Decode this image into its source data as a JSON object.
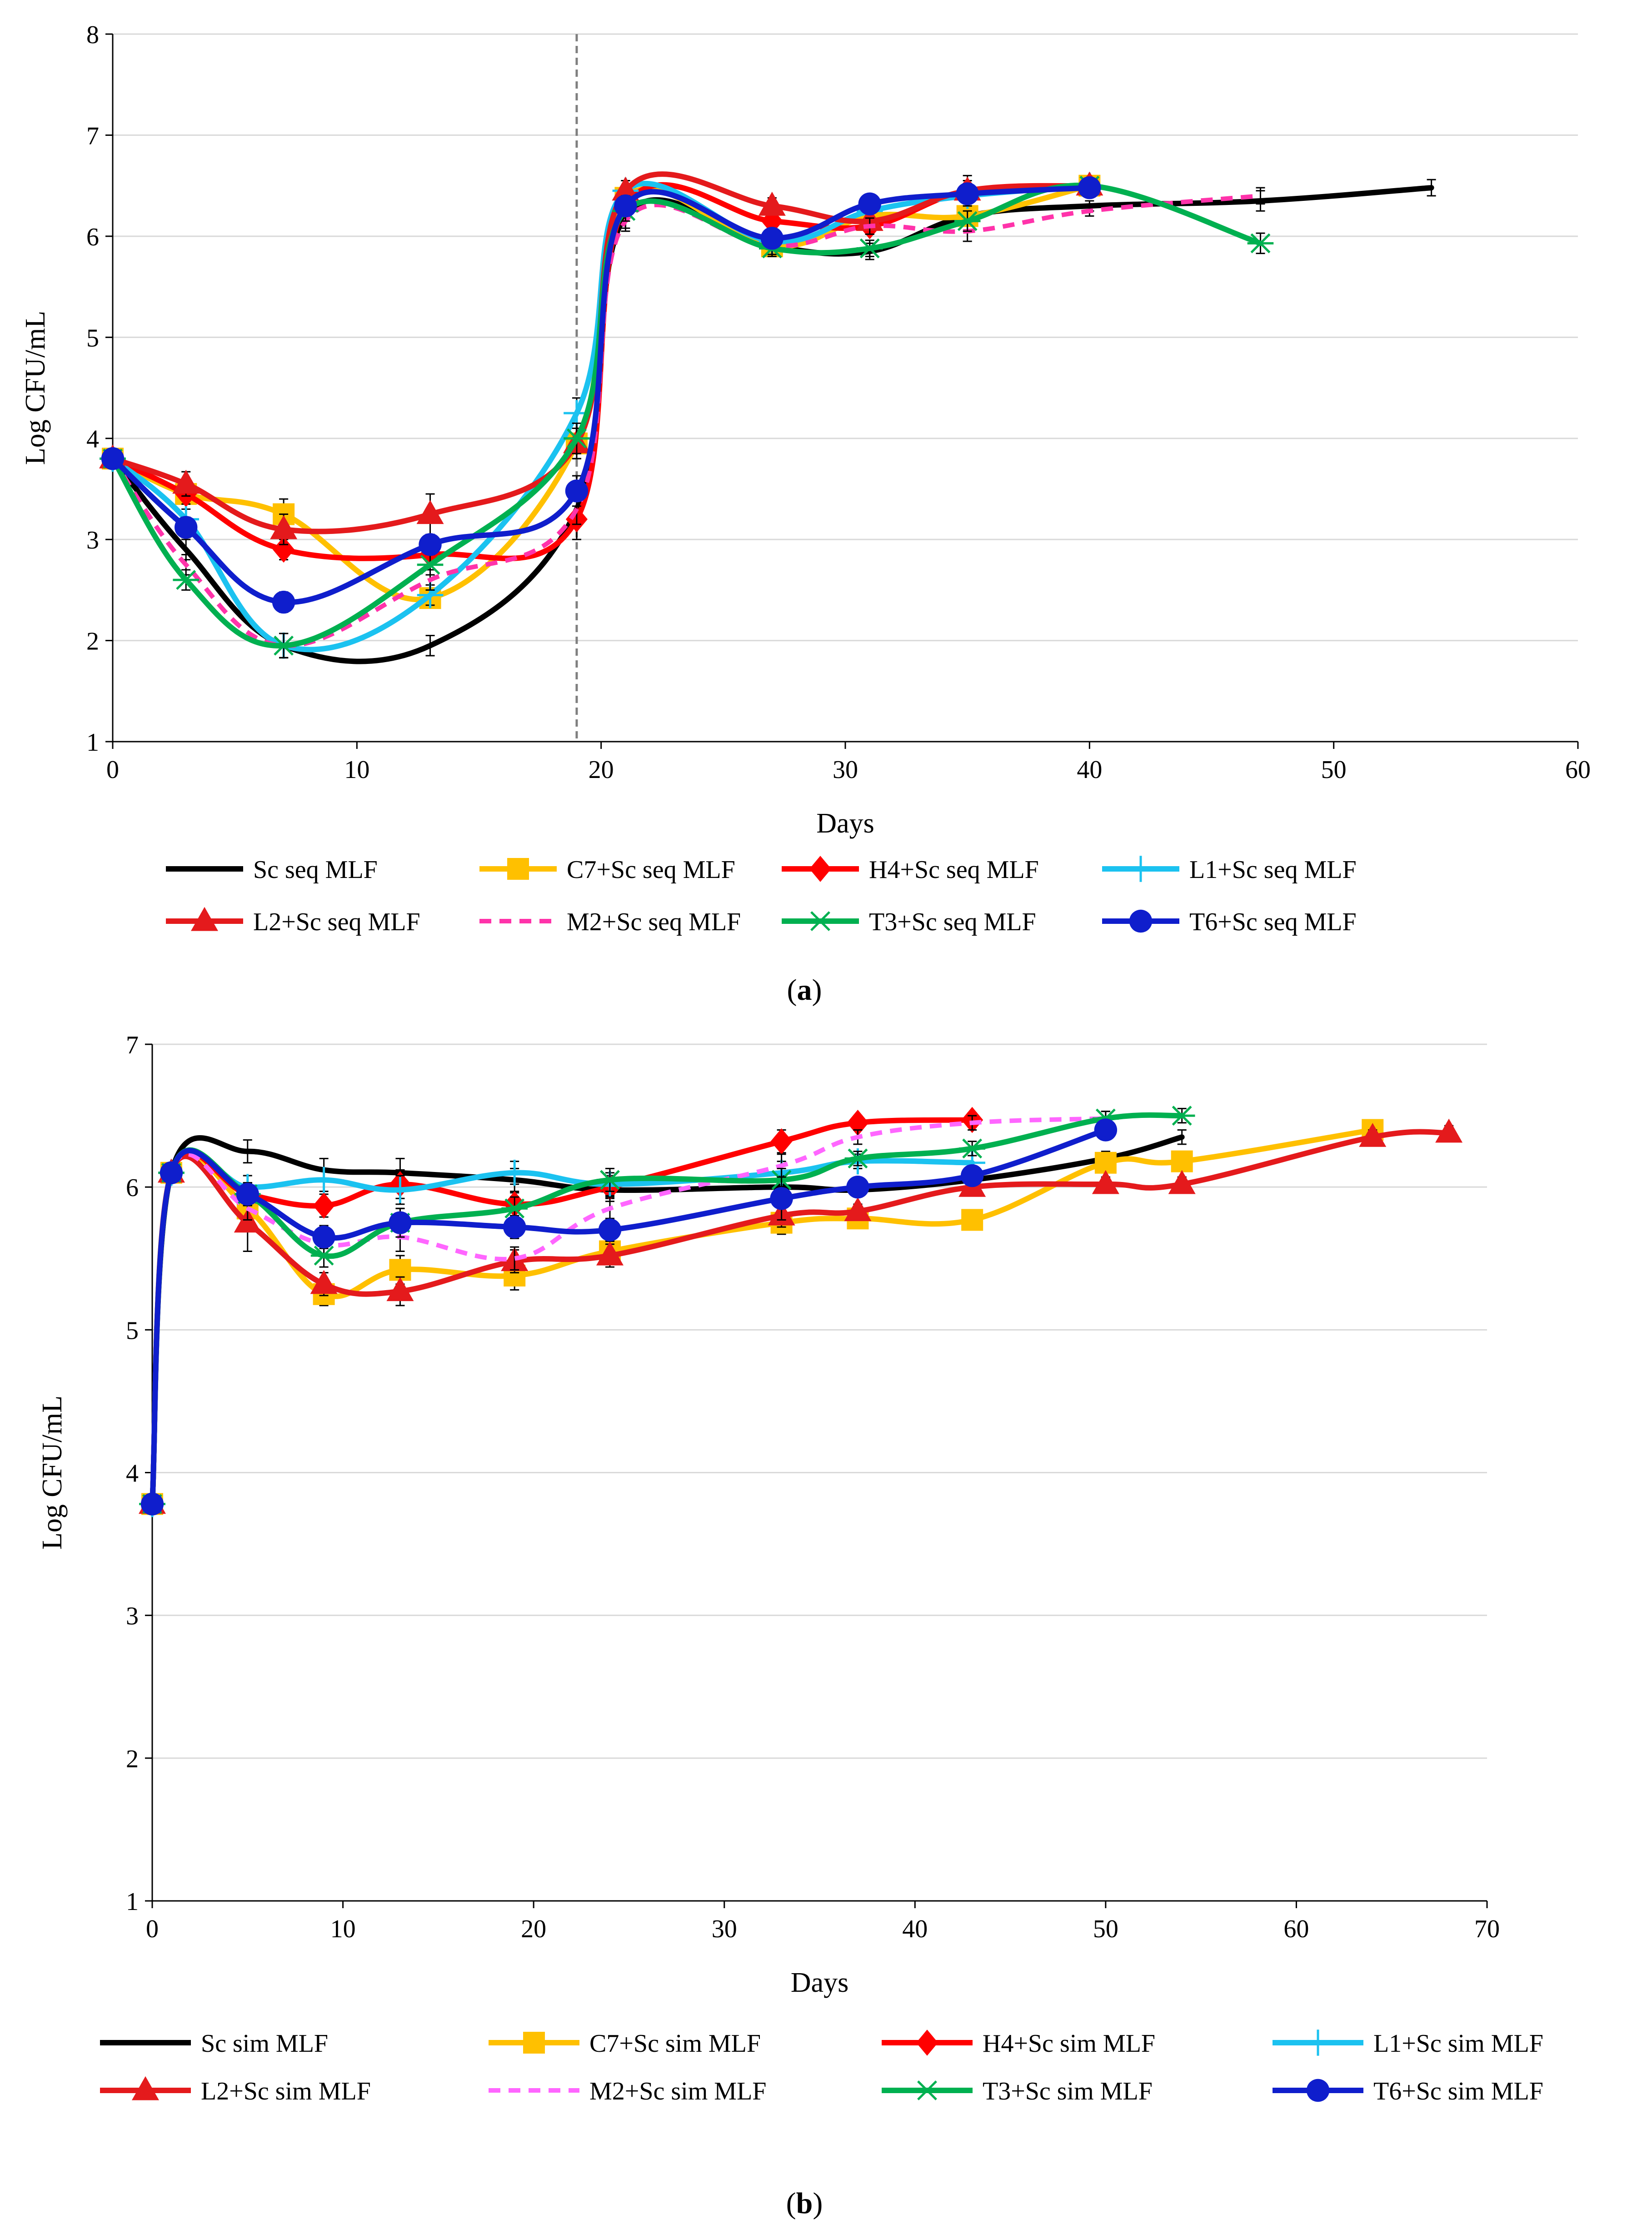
{
  "chart_data": [
    {
      "type": "line",
      "panel_label": "a",
      "xlabel": "Days",
      "ylabel": "Log CFU/mL",
      "xlim": [
        0,
        60
      ],
      "ylim": [
        1,
        8
      ],
      "xticks": [
        0,
        10,
        20,
        30,
        40,
        50,
        60
      ],
      "yticks": [
        1,
        2,
        3,
        4,
        5,
        6,
        7,
        8
      ],
      "grid": "horizontal",
      "vline_x": 19,
      "legend_position": "bottom",
      "series": [
        {
          "name": "Sc seq MLF",
          "color": "#000000",
          "marker": "none",
          "dash": false,
          "x": [
            0,
            3,
            7,
            13,
            19,
            21,
            27,
            31,
            35,
            40,
            47,
            54
          ],
          "y": [
            3.8,
            2.9,
            1.95,
            1.95,
            3.3,
            6.2,
            5.9,
            5.85,
            6.2,
            6.3,
            6.35,
            6.48
          ],
          "err": [
            0.05,
            0.1,
            0.12,
            0.1,
            0.15,
            0.12,
            0.1,
            0.08,
            0.1,
            0.05,
            0.1,
            0.08
          ]
        },
        {
          "name": "C7+Sc seq MLF",
          "color": "#FFC000",
          "marker": "square",
          "dash": false,
          "x": [
            0,
            3,
            7,
            13,
            19,
            21,
            27,
            31,
            35,
            40
          ],
          "y": [
            3.8,
            3.45,
            3.25,
            2.42,
            3.95,
            6.38,
            5.9,
            6.2,
            6.2,
            6.5
          ],
          "err": [
            0.05,
            0.1,
            0.15,
            0.1,
            0.15,
            0.1,
            0.08,
            0.08,
            0.1,
            0.05
          ]
        },
        {
          "name": "H4+Sc seq MLF",
          "color": "#FF0000",
          "marker": "diamond",
          "dash": false,
          "x": [
            0,
            3,
            7,
            13,
            19,
            21,
            27,
            31,
            35,
            40
          ],
          "y": [
            3.8,
            3.45,
            2.9,
            2.85,
            3.2,
            6.3,
            6.15,
            6.1,
            6.45,
            6.5
          ],
          "err": [
            0.05,
            0.1,
            0.1,
            0.1,
            0.2,
            0.1,
            0.08,
            0.08,
            0.1,
            0.05
          ]
        },
        {
          "name": "L1+Sc seq MLF",
          "color": "#1BC2F0",
          "marker": "plus",
          "dash": false,
          "x": [
            0,
            3,
            7,
            13,
            19,
            21,
            27,
            31,
            35,
            40
          ],
          "y": [
            3.8,
            3.2,
            1.95,
            2.45,
            4.25,
            6.45,
            5.95,
            6.25,
            6.4,
            6.5
          ],
          "err": [
            0.05,
            0.1,
            0.12,
            0.1,
            0.15,
            0.1,
            0.08,
            0.08,
            0.1,
            0.05
          ]
        },
        {
          "name": "L2+Sc seq MLF",
          "color": "#E41A1C",
          "marker": "triangle",
          "dash": false,
          "x": [
            0,
            3,
            7,
            13,
            19,
            21,
            27,
            31,
            35,
            40
          ],
          "y": [
            3.8,
            3.55,
            3.1,
            3.25,
            3.95,
            6.45,
            6.3,
            6.15,
            6.45,
            6.5
          ],
          "err": [
            0.05,
            0.12,
            0.15,
            0.2,
            0.15,
            0.1,
            0.08,
            0.08,
            0.15,
            0.05
          ]
        },
        {
          "name": "M2+Sc seq MLF",
          "color": "#FF33AA",
          "marker": "none",
          "dash": true,
          "x": [
            0,
            3,
            7,
            13,
            19,
            21,
            27,
            31,
            35,
            40,
            47
          ],
          "y": [
            3.8,
            2.75,
            1.95,
            2.6,
            3.3,
            6.15,
            5.9,
            6.1,
            6.05,
            6.25,
            6.4
          ],
          "err": [
            0.05,
            0.1,
            0.12,
            0.1,
            0.15,
            0.1,
            0.08,
            0.08,
            0.1,
            0.05,
            0.08
          ]
        },
        {
          "name": "T3+Sc seq MLF",
          "color": "#00B050",
          "marker": "star",
          "dash": false,
          "x": [
            0,
            3,
            7,
            13,
            19,
            21,
            27,
            31,
            35,
            40,
            47
          ],
          "y": [
            3.8,
            2.6,
            1.95,
            2.75,
            4.0,
            6.25,
            5.88,
            5.88,
            6.15,
            6.5,
            5.93
          ],
          "err": [
            0.05,
            0.1,
            0.12,
            0.1,
            0.15,
            0.1,
            0.08,
            0.08,
            0.1,
            0.05,
            0.1
          ]
        },
        {
          "name": "T6+Sc seq MLF",
          "color": "#0F1ECC",
          "marker": "circle",
          "dash": false,
          "x": [
            0,
            3,
            7,
            13,
            19,
            21,
            27,
            31,
            35,
            40
          ],
          "y": [
            3.8,
            3.12,
            2.38,
            2.95,
            3.48,
            6.3,
            5.98,
            6.32,
            6.42,
            6.48
          ],
          "err": [
            0.05,
            0.1,
            0.1,
            0.1,
            0.15,
            0.1,
            0.08,
            0.08,
            0.1,
            0.05
          ]
        }
      ]
    },
    {
      "type": "line",
      "panel_label": "b",
      "xlabel": "Days",
      "ylabel": "Log CFU/mL",
      "xlim": [
        0,
        70
      ],
      "ylim": [
        1,
        7
      ],
      "xticks": [
        0,
        10,
        20,
        30,
        40,
        50,
        60,
        70
      ],
      "yticks": [
        1,
        2,
        3,
        4,
        5,
        6,
        7
      ],
      "grid": "horizontal",
      "legend_position": "bottom",
      "series": [
        {
          "name": "Sc sim MLF",
          "color": "#000000",
          "marker": "none",
          "dash": false,
          "x": [
            0,
            1,
            5,
            9,
            13,
            19,
            24,
            33,
            37,
            43,
            50,
            54
          ],
          "y": [
            3.78,
            6.1,
            6.25,
            6.12,
            6.1,
            6.05,
            5.98,
            6.0,
            5.98,
            6.05,
            6.2,
            6.35
          ],
          "err": [
            0.03,
            0.05,
            0.08,
            0.08,
            0.1,
            0.08,
            0.08,
            0.08,
            0.05,
            0.05,
            0.05,
            0.05
          ]
        },
        {
          "name": "C7+Sc sim MLF",
          "color": "#FFC000",
          "marker": "square",
          "dash": false,
          "x": [
            0,
            1,
            5,
            9,
            13,
            19,
            24,
            33,
            37,
            43,
            50,
            54,
            64
          ],
          "y": [
            3.78,
            6.1,
            5.85,
            5.25,
            5.42,
            5.38,
            5.55,
            5.75,
            5.78,
            5.77,
            6.17,
            6.18,
            6.4
          ],
          "err": [
            0.03,
            0.05,
            0.08,
            0.08,
            0.1,
            0.1,
            0.08,
            0.08,
            0.05,
            0.05,
            0.05,
            0.05,
            0.05
          ]
        },
        {
          "name": "H4+Sc sim MLF",
          "color": "#FF0000",
          "marker": "diamond",
          "dash": false,
          "x": [
            0,
            1,
            5,
            9,
            13,
            19,
            24,
            33,
            37,
            43
          ],
          "y": [
            3.78,
            6.1,
            5.95,
            5.87,
            6.02,
            5.88,
            6.0,
            6.32,
            6.45,
            6.47
          ],
          "err": [
            0.03,
            0.05,
            0.08,
            0.08,
            0.1,
            0.08,
            0.08,
            0.08,
            0.05,
            0.05
          ]
        },
        {
          "name": "L1+Sc sim MLF",
          "color": "#1BC2F0",
          "marker": "plus",
          "dash": false,
          "x": [
            0,
            1,
            5,
            9,
            13,
            19,
            24,
            33,
            37,
            43
          ],
          "y": [
            3.78,
            6.1,
            6.0,
            6.05,
            5.98,
            6.1,
            6.02,
            6.1,
            6.18,
            6.17
          ],
          "err": [
            0.03,
            0.05,
            0.08,
            0.08,
            0.1,
            0.08,
            0.08,
            0.08,
            0.05,
            0.05
          ]
        },
        {
          "name": "L2+Sc sim MLF",
          "color": "#E41A1C",
          "marker": "triangle",
          "dash": false,
          "x": [
            0,
            1,
            5,
            9,
            13,
            19,
            24,
            33,
            37,
            43,
            50,
            54,
            64,
            68
          ],
          "y": [
            3.78,
            6.1,
            5.75,
            5.32,
            5.27,
            5.48,
            5.52,
            5.8,
            5.83,
            6.0,
            6.02,
            6.02,
            6.35,
            6.38
          ],
          "err": [
            0.03,
            0.05,
            0.2,
            0.08,
            0.1,
            0.08,
            0.08,
            0.08,
            0.05,
            0.05,
            0.05,
            0.05,
            0.05,
            0.05
          ]
        },
        {
          "name": "M2+Sc sim MLF",
          "color": "#FF66FF",
          "marker": "none",
          "dash": true,
          "x": [
            0,
            1,
            5,
            9,
            13,
            19,
            24,
            33,
            37,
            43,
            50
          ],
          "y": [
            3.78,
            6.1,
            5.85,
            5.6,
            5.65,
            5.5,
            5.85,
            6.15,
            6.35,
            6.45,
            6.48
          ],
          "err": [
            0.03,
            0.05,
            0.08,
            0.08,
            0.1,
            0.08,
            0.08,
            0.08,
            0.05,
            0.05,
            0.05
          ]
        },
        {
          "name": "T3+Sc sim MLF",
          "color": "#00B050",
          "marker": "star",
          "dash": false,
          "x": [
            0,
            1,
            5,
            9,
            13,
            19,
            24,
            33,
            37,
            43,
            50,
            54
          ],
          "y": [
            3.78,
            6.1,
            5.95,
            5.52,
            5.75,
            5.85,
            6.05,
            6.05,
            6.2,
            6.27,
            6.48,
            6.5
          ],
          "err": [
            0.03,
            0.05,
            0.08,
            0.08,
            0.1,
            0.08,
            0.08,
            0.08,
            0.05,
            0.05,
            0.05,
            0.05
          ]
        },
        {
          "name": "T6+Sc sim MLF",
          "color": "#0F1ECC",
          "marker": "circle",
          "dash": false,
          "x": [
            0,
            1,
            5,
            9,
            13,
            19,
            24,
            33,
            37,
            43,
            50
          ],
          "y": [
            3.78,
            6.1,
            5.95,
            5.65,
            5.75,
            5.72,
            5.7,
            5.92,
            6.0,
            6.08,
            6.4
          ],
          "err": [
            0.03,
            0.05,
            0.08,
            0.08,
            0.1,
            0.08,
            0.08,
            0.15,
            0.05,
            0.05,
            0.05
          ]
        }
      ]
    }
  ]
}
